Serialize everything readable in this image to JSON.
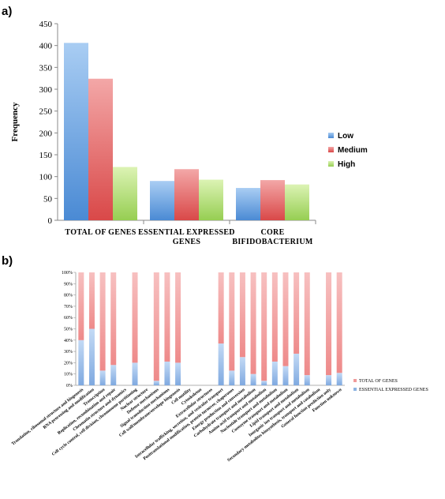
{
  "panel_a_label": "a)",
  "panel_b_label": "b)",
  "chart_data": [
    {
      "type": "bar",
      "categories": [
        "TOTAL OF GENES",
        "ESSENTIAL EXPRESSED GENES",
        "CORE BIFIDOBACTERIUM"
      ],
      "series": [
        {
          "name": "Low",
          "values": [
            406,
            90,
            74
          ]
        },
        {
          "name": "Medium",
          "values": [
            324,
            117,
            92
          ]
        },
        {
          "name": "High",
          "values": [
            122,
            93,
            82
          ]
        }
      ],
      "ylabel": "Frequency",
      "ylim": [
        0,
        450
      ],
      "yticks": [
        0,
        50,
        100,
        150,
        200,
        250,
        300,
        350,
        400,
        450
      ],
      "legend_position": "right",
      "colors": {
        "Low": "#5b9bd5",
        "Medium": "#e05a5a",
        "High": "#a8d86a"
      }
    },
    {
      "type": "bar",
      "stacked": "percent",
      "categories": [
        "Translation, ribosomal structure and biogenesis",
        "RNA processing and modification",
        "Transcription",
        "Replication, recombination and repair",
        "Chromatin structure and dynamics",
        "Cell cycle control, cell division, chromosome partitioning",
        "Nuclear structure",
        "Defense mechanisms",
        "Signal transduction mechanisms",
        "Cell wall/membrane/envelope biogenesis",
        "Cell motility",
        "Cytoskeleton",
        "Extracellular structures",
        "Intracellular trafficking, secretion, and vesicular transport",
        "Posttranslational modification, protein turnover, chaperones",
        "Energy production and conversion",
        "Carbohydrate transport and metabolism",
        "Amino acid transport and metabolism",
        "Nucleotide transport and metabolism",
        "Coenzyme transport and metabolism",
        "Lipid transport and metabolism",
        "Inorganic ion transport and metabolism",
        "Secondary metabolites biosynthesis, transport and catabolism",
        "General function prediction only",
        "Function unknown"
      ],
      "series": [
        {
          "name": "ESSENTIAL EXPRESSED GENES",
          "values": [
            40,
            50,
            13,
            18,
            0,
            20,
            0,
            4,
            21,
            20,
            0,
            0,
            0,
            37,
            13,
            25,
            10,
            4,
            21,
            17,
            28,
            9,
            0,
            9,
            11
          ]
        },
        {
          "name": "TOTAL OF GENES",
          "values": [
            60,
            50,
            87,
            82,
            0,
            80,
            0,
            96,
            79,
            80,
            0,
            0,
            0,
            63,
            87,
            75,
            90,
            96,
            79,
            83,
            72,
            91,
            0,
            91,
            89
          ]
        }
      ],
      "ylim": [
        0,
        100
      ],
      "yticks": [
        "0%",
        "10%",
        "20%",
        "30%",
        "40%",
        "50%",
        "60%",
        "70%",
        "80%",
        "90%",
        "100%"
      ],
      "legend_position": "right",
      "colors": {
        "ESSENTIAL EXPRESSED GENES": "#8db4e2",
        "TOTAL OF GENES": "#f09a9a"
      }
    }
  ]
}
